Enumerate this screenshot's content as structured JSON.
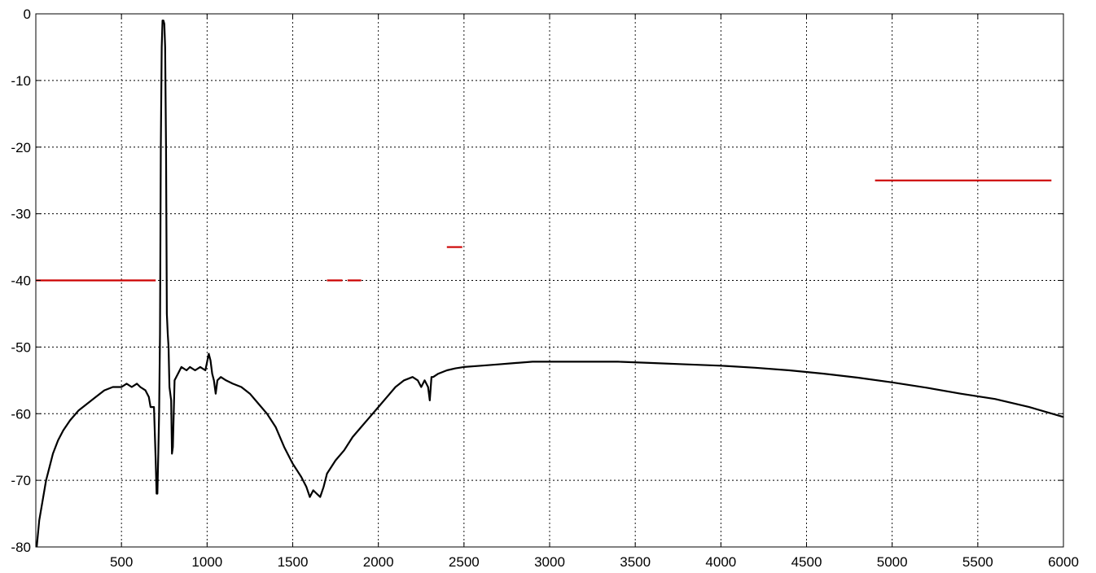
{
  "chart_data": {
    "type": "line",
    "title": "",
    "xlabel": "",
    "ylabel": "",
    "xlim": [
      0,
      6000
    ],
    "ylim": [
      -80,
      0
    ],
    "grid": true,
    "legend": "none",
    "x_ticks": [
      "500",
      "1000",
      "1500",
      "2000",
      "2500",
      "3000",
      "3500",
      "4000",
      "4500",
      "5000",
      "5500",
      "6000"
    ],
    "y_ticks": [
      "0",
      "-10",
      "-20",
      "-30",
      "-40",
      "-50",
      "-60",
      "-70",
      "-80"
    ],
    "series": [
      {
        "color": "#000000",
        "x": [
          5,
          20,
          40,
          60,
          80,
          100,
          130,
          160,
          200,
          250,
          300,
          350,
          400,
          450,
          480,
          500,
          530,
          560,
          590,
          610,
          640,
          660,
          670,
          690,
          700,
          705,
          710,
          715,
          720,
          725,
          730,
          735,
          740,
          745,
          750,
          755,
          760,
          765,
          770,
          775,
          780,
          790,
          795,
          800,
          810,
          830,
          850,
          880,
          900,
          930,
          960,
          990,
          1010,
          1020,
          1030,
          1040,
          1050,
          1060,
          1080,
          1110,
          1150,
          1200,
          1250,
          1300,
          1350,
          1400,
          1450,
          1500,
          1550,
          1580,
          1600,
          1620,
          1640,
          1660,
          1680,
          1700,
          1750,
          1800,
          1850,
          1900,
          1950,
          2000,
          2050,
          2100,
          2150,
          2200,
          2230,
          2250,
          2270,
          2290,
          2300,
          2310,
          2320,
          2350,
          2400,
          2450,
          2500,
          2600,
          2700,
          2800,
          2900,
          3000,
          3200,
          3400,
          3600,
          3800,
          4000,
          4200,
          4400,
          4600,
          4800,
          5000,
          5200,
          5400,
          5600,
          5800,
          6000
        ],
        "y": [
          -80,
          -76,
          -73,
          -70,
          -68,
          -66,
          -64,
          -62.5,
          -61,
          -59.5,
          -58.5,
          -57.5,
          -56.5,
          -56,
          -56,
          -56,
          -55.5,
          -56,
          -55.5,
          -56,
          -56.5,
          -57.5,
          -59,
          -59,
          -67,
          -72,
          -72,
          -66,
          -60,
          -48,
          -20,
          -5,
          -1,
          -1,
          -1.5,
          -5,
          -20,
          -45,
          -48,
          -50,
          -56,
          -58,
          -66,
          -65,
          -55,
          -54,
          -53,
          -53.5,
          -53,
          -53.5,
          -53,
          -53.5,
          -51,
          -52,
          -54,
          -55,
          -57,
          -55,
          -54.5,
          -55,
          -55.5,
          -56,
          -57,
          -58.5,
          -60,
          -62,
          -65,
          -67.5,
          -69.5,
          -71,
          -72.5,
          -71.5,
          -72,
          -72.5,
          -71,
          -69,
          -67,
          -65.5,
          -63.5,
          -62,
          -60.5,
          -59,
          -57.5,
          -56,
          -55,
          -54.5,
          -55,
          -56,
          -55,
          -56,
          -58,
          -54.5,
          -54.5,
          -54,
          -53.5,
          -53.2,
          -53,
          -52.8,
          -52.6,
          -52.4,
          -52.2,
          -52.2,
          -52.2,
          -52.2,
          -52.4,
          -52.6,
          -52.8,
          -53.1,
          -53.5,
          -54,
          -54.6,
          -55.3,
          -56.1,
          -57,
          -57.8,
          -59,
          -60.5
        ]
      },
      {
        "color": "#cc0000",
        "segments": [
          {
            "x": [
              0,
              700
            ],
            "y": [
              -40,
              -40
            ]
          },
          {
            "x": [
              1700,
              1790
            ],
            "y": [
              -40,
              -40
            ]
          },
          {
            "x": [
              1820,
              1900
            ],
            "y": [
              -40,
              -40
            ]
          },
          {
            "x": [
              2400,
              2490
            ],
            "y": [
              -35,
              -35
            ]
          },
          {
            "x": [
              4900,
              5930
            ],
            "y": [
              -25,
              -25
            ]
          }
        ]
      }
    ]
  }
}
